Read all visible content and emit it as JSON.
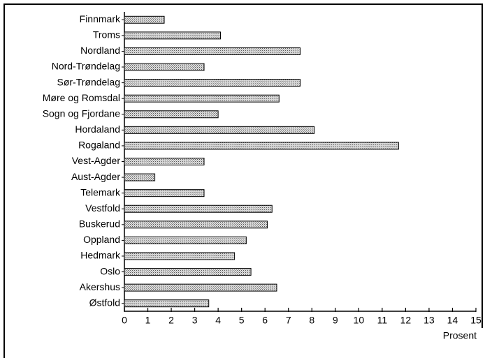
{
  "chart_data": {
    "type": "barh",
    "categories": [
      "Finnmark",
      "Troms",
      "Nordland",
      "Nord-Trøndelag",
      "Sør-Trøndelag",
      "Møre og Romsdal",
      "Sogn og Fjordane",
      "Hordaland",
      "Rogaland",
      "Vest-Agder",
      "Aust-Agder",
      "Telemark",
      "Vestfold",
      "Buskerud",
      "Oppland",
      "Hedmark",
      "Oslo",
      "Akershus",
      "Østfold"
    ],
    "values": [
      1.7,
      4.1,
      7.5,
      3.4,
      7.5,
      6.6,
      4.0,
      8.1,
      11.7,
      3.4,
      1.3,
      3.4,
      6.3,
      6.1,
      5.2,
      4.7,
      5.4,
      6.5,
      3.6
    ],
    "color": "#b8b8b8",
    "xlabel": "Prosent",
    "xlim": [
      0,
      15
    ],
    "xticks": [
      0,
      1,
      2,
      3,
      4,
      5,
      6,
      7,
      8,
      9,
      10,
      11,
      12,
      13,
      14,
      15
    ]
  }
}
